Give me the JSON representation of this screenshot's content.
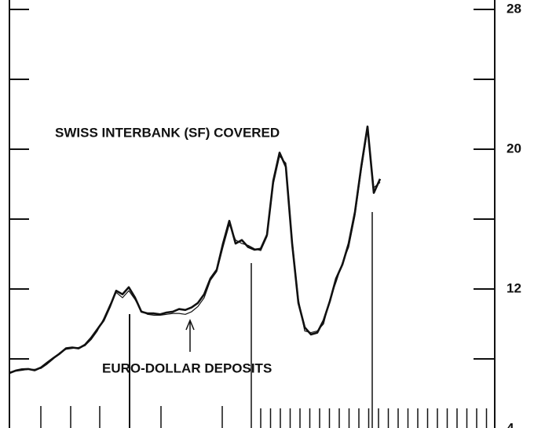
{
  "chart_data": {
    "type": "line",
    "annotations": [
      "SWISS INTERBANK (SF) COVERED",
      "EURO-DOLLAR DEPOSITS"
    ],
    "series": [
      {
        "name": "SWISS INTERBANK (SF) COVERED",
        "color": "#111111",
        "values": [
          7.19,
          7.33,
          7.4,
          7.42,
          7.35,
          7.5,
          7.78,
          8.05,
          8.3,
          8.6,
          8.65,
          8.6,
          8.8,
          9.2,
          9.7,
          10.2,
          11.0,
          11.9,
          11.7,
          12.1,
          11.5,
          10.7,
          10.6,
          10.6,
          10.55,
          10.65,
          10.7,
          10.85,
          10.8,
          10.95,
          11.2,
          11.7,
          12.6,
          13.1,
          14.6,
          15.9,
          14.6,
          14.8,
          14.4,
          14.25,
          14.3,
          15.1,
          18.2,
          19.8,
          19.0,
          14.6,
          11.2,
          9.8,
          9.4,
          9.5,
          10.2,
          11.3,
          12.6,
          13.4,
          14.6,
          16.4,
          19.0,
          21.3,
          17.5,
          18.3
        ]
      },
      {
        "name": "EURO-DOLLAR DEPOSITS",
        "color": "#111111",
        "values": [
          7.25,
          7.3,
          7.35,
          7.4,
          7.4,
          7.45,
          7.7,
          8.0,
          8.35,
          8.55,
          8.6,
          8.65,
          8.75,
          9.1,
          9.6,
          10.3,
          11.1,
          11.8,
          11.5,
          11.9,
          11.4,
          10.75,
          10.55,
          10.5,
          10.5,
          10.55,
          10.6,
          10.6,
          10.55,
          10.7,
          11.0,
          11.5,
          12.5,
          13.0,
          14.4,
          15.7,
          14.8,
          14.6,
          14.5,
          14.3,
          14.2,
          15.0,
          18.0,
          19.6,
          19.2,
          14.8,
          11.4,
          9.6,
          9.5,
          9.6,
          10.0,
          11.4,
          12.4,
          13.5,
          14.4,
          16.2,
          18.8,
          21.1,
          17.8,
          18.1
        ]
      }
    ],
    "ylim": [
      4,
      28
    ],
    "yticks": [
      4,
      12,
      20,
      28
    ],
    "minor_yticks": [
      8,
      16,
      24
    ],
    "yaxis_side": "right"
  }
}
